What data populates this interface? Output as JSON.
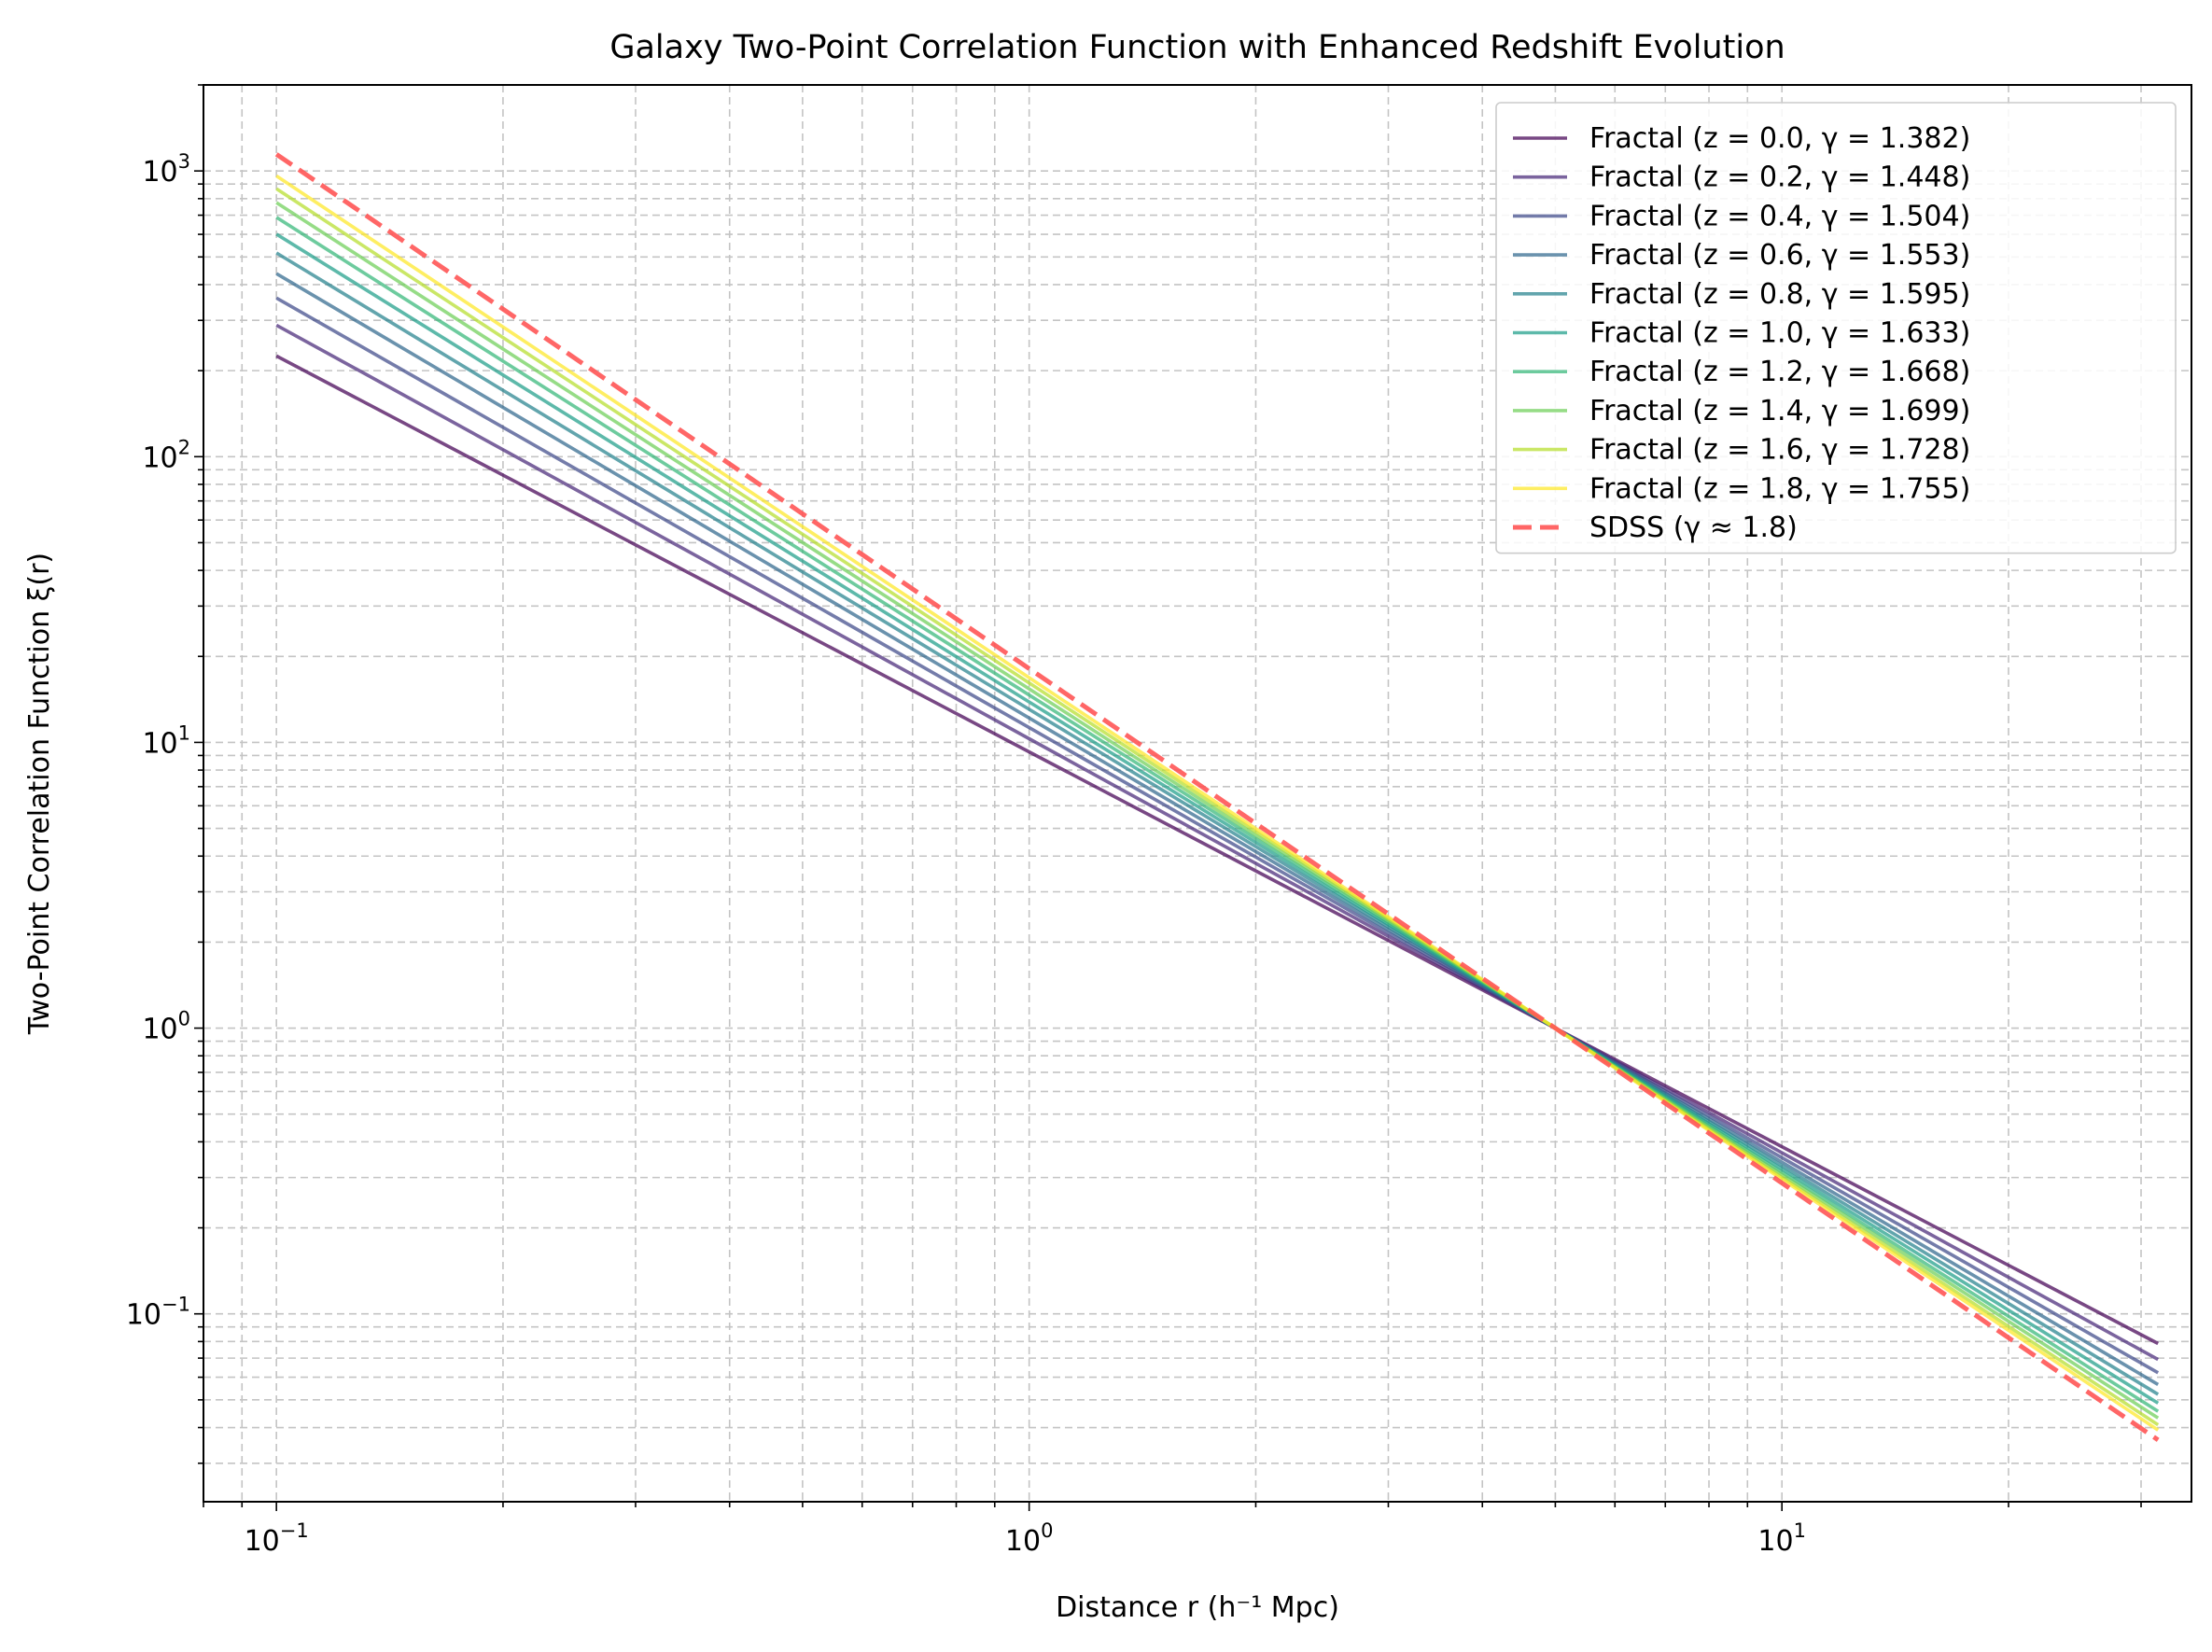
{
  "chart_data": {
    "type": "line",
    "title": "Galaxy Two-Point Correlation Function with Enhanced Redshift Evolution",
    "xlabel": "Distance r (h⁻¹ Mpc)",
    "ylabel": "Two-Point Correlation Function ξ(r)",
    "xscale": "log",
    "yscale": "log",
    "xlim": [
      0.08,
      35
    ],
    "ylim": [
      0.022,
      2000
    ],
    "xticks": [
      {
        "base": "10",
        "exp": "−1",
        "value": 0.1
      },
      {
        "base": "10",
        "exp": "0",
        "value": 1
      },
      {
        "base": "10",
        "exp": "1",
        "value": 10
      }
    ],
    "yticks": [
      {
        "base": "10",
        "exp": "−1",
        "value": 0.1
      },
      {
        "base": "10",
        "exp": "0",
        "value": 1
      },
      {
        "base": "10",
        "exp": "1",
        "value": 10
      },
      {
        "base": "10",
        "exp": "2",
        "value": 100
      },
      {
        "base": "10",
        "exp": "3",
        "value": 1000
      }
    ],
    "grid": true,
    "legend_position": "top-right",
    "series": [
      {
        "name": "Fractal (z = 0.0, γ = 1.382)",
        "gamma": 1.382,
        "color": "#440154",
        "style": "solid",
        "x": [
          0.1,
          1,
          5,
          31.6
        ],
        "y": [
          225.2,
          9.26,
          1.0,
          0.0787
        ]
      },
      {
        "name": "Fractal (z = 0.2, γ = 1.448)",
        "gamma": 1.448,
        "color": "#482878",
        "style": "solid",
        "x": [
          0.1,
          1,
          5,
          31.6
        ],
        "y": [
          288.5,
          10.3,
          1.0,
          0.0692
        ]
      },
      {
        "name": "Fractal (z = 0.4, γ = 1.504)",
        "gamma": 1.504,
        "color": "#3e4989",
        "style": "solid",
        "x": [
          0.1,
          1,
          5,
          31.6
        ],
        "y": [
          359.2,
          11.26,
          1.0,
          0.0622
        ]
      },
      {
        "name": "Fractal (z = 0.6, γ = 1.553)",
        "gamma": 1.553,
        "color": "#31688e",
        "style": "solid",
        "x": [
          0.1,
          1,
          5,
          31.6
        ],
        "y": [
          436.9,
          12.17,
          1.0,
          0.0566
        ]
      },
      {
        "name": "Fractal (z = 0.8, γ = 1.595)",
        "gamma": 1.595,
        "color": "#26828e",
        "style": "solid",
        "x": [
          0.1,
          1,
          5,
          31.6
        ],
        "y": [
          516.6,
          13.05,
          1.0,
          0.0523
        ]
      },
      {
        "name": "Fractal (z = 1.0, γ = 1.633)",
        "gamma": 1.633,
        "color": "#1f9e89",
        "style": "solid",
        "x": [
          0.1,
          1,
          5,
          31.6
        ],
        "y": [
          600.7,
          13.85,
          1.0,
          0.0487
        ]
      },
      {
        "name": "Fractal (z = 1.2, γ = 1.668)",
        "gamma": 1.668,
        "color": "#35b779",
        "style": "solid",
        "x": [
          0.1,
          1,
          5,
          31.6
        ],
        "y": [
          687.9,
          14.64,
          1.0,
          0.0456
        ]
      },
      {
        "name": "Fractal (z = 1.4, γ = 1.699)",
        "gamma": 1.699,
        "color": "#6ece58",
        "style": "solid",
        "x": [
          0.1,
          1,
          5,
          31.6
        ],
        "y": [
          774.6,
          15.39,
          1.0,
          0.0432
        ]
      },
      {
        "name": "Fractal (z = 1.6, γ = 1.728)",
        "gamma": 1.728,
        "color": "#b5de2b",
        "style": "solid",
        "x": [
          0.1,
          1,
          5,
          31.6
        ],
        "y": [
          866.2,
          16.14,
          1.0,
          0.0409
        ]
      },
      {
        "name": "Fractal (z = 1.8, γ = 1.755)",
        "gamma": 1.755,
        "color": "#fde725",
        "style": "solid",
        "x": [
          0.1,
          1,
          5,
          31.6
        ],
        "y": [
          960.4,
          16.84,
          1.0,
          0.0392
        ]
      },
      {
        "name": "SDSS (γ ≈ 1.8)",
        "gamma": 1.8,
        "color": "#ff5555",
        "style": "dashed",
        "x": [
          0.1,
          1,
          5,
          31.6
        ],
        "y": [
          1143.5,
          18.12,
          1.0,
          0.0362
        ]
      }
    ]
  }
}
